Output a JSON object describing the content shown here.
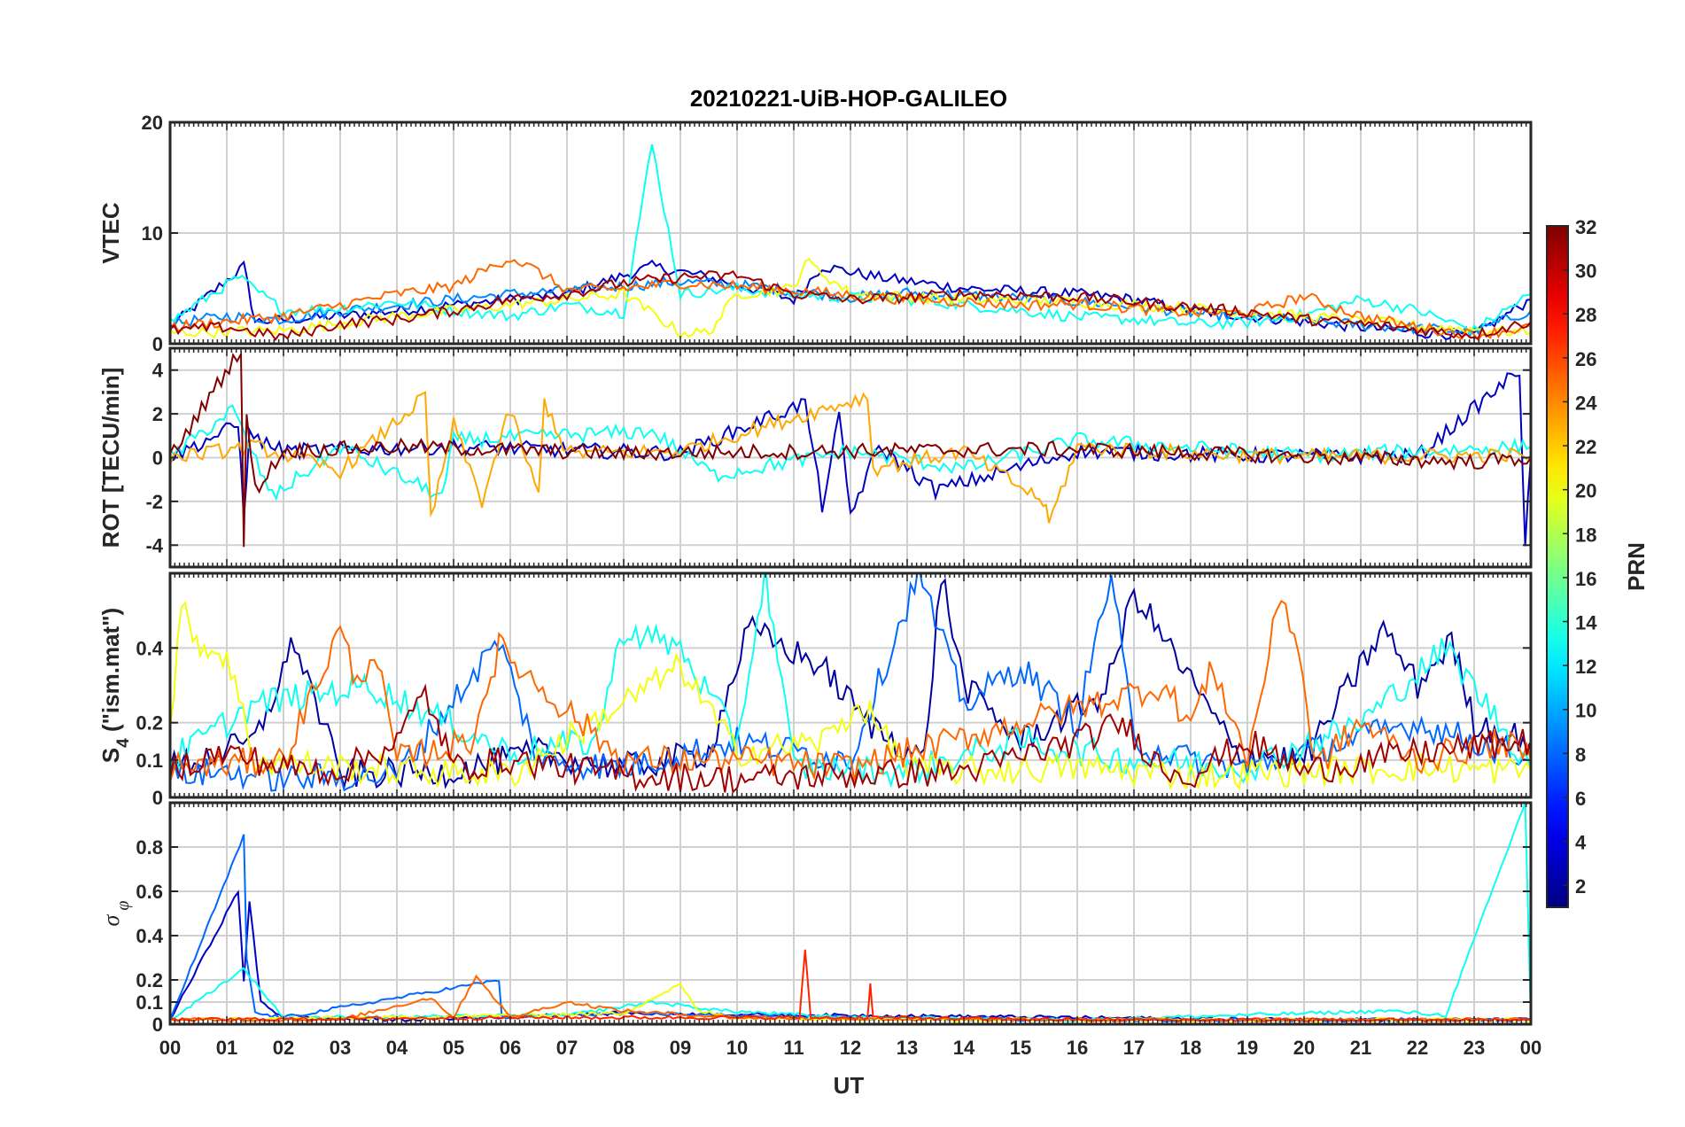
{
  "chart_data": {
    "title": "20210221-UiB-HOP-GALILEO",
    "type": "line",
    "xlabel": "UT",
    "xlim": [
      0,
      24
    ],
    "xticks": [
      "00",
      "01",
      "02",
      "03",
      "04",
      "05",
      "06",
      "07",
      "08",
      "09",
      "10",
      "11",
      "12",
      "13",
      "14",
      "15",
      "16",
      "17",
      "18",
      "19",
      "20",
      "21",
      "22",
      "23",
      "00"
    ],
    "colorbar": {
      "label": "PRN",
      "range": [
        1,
        32
      ],
      "ticks": [
        2,
        4,
        6,
        8,
        10,
        12,
        14,
        16,
        18,
        20,
        22,
        24,
        26,
        28,
        30,
        32
      ],
      "colormap": "jet"
    },
    "panels": [
      {
        "ylabel": "VTEC",
        "ylim": [
          0,
          20
        ],
        "yticks": [
          0,
          10,
          20
        ],
        "series": [
          {
            "prn": 3,
            "x": [
              0,
              1.3,
              1.5,
              3,
              5,
              7,
              8.5,
              9.5,
              11,
              11.5,
              12.5,
              14,
              16,
              17,
              18,
              19,
              20,
              21,
              22,
              23,
              24
            ],
            "y": [
              1.5,
              7,
              2,
              2.5,
              3.5,
              4.5,
              7,
              6,
              4,
              7,
              6,
              5,
              4.5,
              4,
              3,
              2.5,
              2,
              1.5,
              1,
              0.8,
              4
            ]
          },
          {
            "prn": 9,
            "x": [
              0,
              1,
              2,
              3,
              4,
              5,
              6,
              7,
              8,
              9,
              10,
              11,
              12,
              13,
              14,
              15,
              16,
              17,
              18,
              19,
              20,
              21,
              22,
              23,
              24
            ],
            "y": [
              1.8,
              2.5,
              2.2,
              3,
              3.5,
              4,
              4.5,
              4.8,
              5.2,
              5.6,
              5.3,
              4.8,
              4.2,
              4.6,
              4.4,
              4.1,
              3.8,
              3.4,
              2.8,
              2.4,
              2.1,
              1.7,
              1.4,
              1.1,
              3
            ]
          },
          {
            "prn": 13,
            "x": [
              0,
              1.2,
              2,
              3,
              4,
              5,
              6,
              7,
              8,
              8.5,
              9,
              10,
              11,
              12,
              13,
              14,
              15,
              16,
              17,
              18,
              19,
              20,
              21,
              22,
              23,
              24
            ],
            "y": [
              2,
              6,
              3,
              3.2,
              3.8,
              3,
              2.5,
              3.5,
              2.8,
              18,
              4.5,
              5,
              4.4,
              4.2,
              4.0,
              3.5,
              3.0,
              2.4,
              2.2,
              1.8,
              1.9,
              2.6,
              4,
              3.0,
              1.2,
              4.5
            ]
          },
          {
            "prn": 20,
            "x": [
              0,
              2,
              4,
              6,
              8,
              9,
              9.5,
              10,
              11,
              11.2,
              12,
              14,
              16,
              18,
              20,
              22,
              24
            ],
            "y": [
              1,
              1.2,
              2.5,
              3.5,
              4.5,
              1,
              1,
              4.5,
              5,
              7.5,
              4.5,
              4,
              3.8,
              3.2,
              2.5,
              1.6,
              1
            ]
          },
          {
            "prn": 25,
            "x": [
              0,
              1,
              2,
              3,
              4,
              5,
              6,
              6.5,
              7,
              8,
              9,
              10,
              11,
              12,
              13,
              14,
              15,
              16,
              17,
              18,
              19,
              20,
              21,
              22,
              23,
              24
            ],
            "y": [
              1.5,
              2,
              2.5,
              3.5,
              4.5,
              5.2,
              7.8,
              6.5,
              4.8,
              5,
              5.5,
              5.2,
              4.8,
              4.4,
              4.0,
              3.8,
              3.5,
              3.6,
              3.2,
              2.8,
              2.8,
              4.3,
              2.5,
              1.5,
              0.8,
              1.5
            ]
          },
          {
            "prn": 31,
            "x": [
              0,
              1,
              2,
              3,
              4,
              5,
              6,
              7,
              8,
              9,
              10,
              11,
              12,
              13,
              14,
              15,
              16,
              17,
              18,
              19,
              20,
              21,
              22,
              23,
              24
            ],
            "y": [
              1.2,
              1.5,
              0.6,
              1.8,
              2.2,
              3,
              4,
              4.5,
              5.5,
              6,
              6.2,
              4.5,
              4,
              4.2,
              4.5,
              4.4,
              4.2,
              3.8,
              3.3,
              2.9,
              2.2,
              1.8,
              1.3,
              0.8,
              2
            ]
          }
        ]
      },
      {
        "ylabel": "ROT [TECU/min]",
        "ylim": [
          -5,
          5
        ],
        "yticks": [
          -4,
          -2,
          0,
          2,
          4
        ],
        "series": [
          {
            "prn": 3,
            "x": [
              0,
              1.2,
              1.3,
              1.4,
              2,
              5,
              9,
              11.2,
              11.5,
              11.8,
              12.0,
              12.5,
              13.5,
              16,
              19,
              22,
              23.8,
              23.9,
              24
            ],
            "y": [
              0,
              1.5,
              -2.5,
              1,
              0.3,
              0.5,
              0.2,
              2.5,
              -2.2,
              1.8,
              -2.6,
              0.5,
              -1.5,
              0.3,
              0.1,
              0.05,
              4,
              -4,
              0
            ]
          },
          {
            "prn": 13,
            "x": [
              0,
              1.1,
              1.8,
              3,
              4.8,
              5,
              8.5,
              9.6,
              12,
              14,
              16,
              20,
              24
            ],
            "y": [
              0,
              2.2,
              -1.8,
              0.5,
              -1.8,
              0.8,
              1.2,
              -0.8,
              0.3,
              -0.5,
              0.8,
              0.1,
              0.5
            ]
          },
          {
            "prn": 23,
            "x": [
              0,
              1.5,
              3,
              4.5,
              4.6,
              5,
              5.5,
              6,
              6.5,
              6.6,
              7,
              9,
              12.3,
              12.4,
              14,
              15.4,
              15.5,
              16,
              18,
              20,
              24
            ],
            "y": [
              0,
              0.5,
              -0.6,
              2.8,
              -2.8,
              1.5,
              -2,
              2.2,
              -1.8,
              2.6,
              0.2,
              0.3,
              2.8,
              -0.5,
              0.3,
              -2,
              -3,
              0.5,
              0.2,
              0.05,
              0.1
            ]
          },
          {
            "prn": 32,
            "x": [
              0,
              1.25,
              1.3,
              1.35,
              1.5,
              2,
              4,
              8,
              12,
              16,
              20,
              23,
              24
            ],
            "y": [
              0,
              5,
              -4,
              2,
              -1.5,
              0.3,
              0.5,
              0.2,
              0.3,
              0.4,
              0.05,
              -0.2,
              0
            ]
          }
        ]
      },
      {
        "ylabel": "S4 (\"ism.mat\")",
        "ylim": [
          0,
          0.6
        ],
        "yticks": [
          0,
          0.1,
          0.2,
          0.4
        ],
        "series": [
          {
            "prn": 2,
            "x": [
              0,
              1.5,
              2.2,
              3,
              5,
              6.5,
              8,
              9.5,
              10.2,
              11.5,
              12.3,
              13.3,
              13.6,
              14,
              15,
              16.5,
              17,
              18.8,
              20,
              21.4,
              22,
              22.6,
              23,
              24
            ],
            "y": [
              0.08,
              0.15,
              0.42,
              0.06,
              0.07,
              0.12,
              0.08,
              0.12,
              0.45,
              0.35,
              0.2,
              0.1,
              0.6,
              0.3,
              0.15,
              0.28,
              0.55,
              0.12,
              0.1,
              0.45,
              0.3,
              0.42,
              0.2,
              0.15
            ]
          },
          {
            "prn": 8,
            "x": [
              0,
              1,
              2,
              4,
              5.2,
              5.8,
              6.5,
              8,
              10,
              12,
              13.2,
              14,
              15,
              16,
              16.6,
              17,
              18,
              19,
              20,
              22,
              24
            ],
            "y": [
              0.06,
              0.07,
              0.05,
              0.06,
              0.3,
              0.42,
              0.1,
              0.08,
              0.15,
              0.1,
              0.6,
              0.25,
              0.35,
              0.2,
              0.6,
              0.15,
              0.1,
              0.08,
              0.12,
              0.2,
              0.1
            ]
          },
          {
            "prn": 13,
            "x": [
              0,
              1.5,
              3.5,
              6,
              7.5,
              8,
              9,
              10,
              10.5,
              11,
              13,
              15,
              17,
              19,
              21,
              22.5,
              24
            ],
            "y": [
              0.1,
              0.25,
              0.3,
              0.12,
              0.15,
              0.45,
              0.4,
              0.15,
              0.6,
              0.08,
              0.07,
              0.15,
              0.1,
              0.08,
              0.2,
              0.4,
              0.08
            ]
          },
          {
            "prn": 20,
            "x": [
              0,
              0.2,
              0.6,
              1,
              1.5,
              3,
              6,
              9,
              10,
              11.5,
              12.2,
              13,
              14,
              16,
              18,
              20,
              22,
              24
            ],
            "y": [
              0.2,
              0.5,
              0.4,
              0.38,
              0.1,
              0.08,
              0.06,
              0.35,
              0.12,
              0.15,
              0.25,
              0.08,
              0.07,
              0.08,
              0.06,
              0.07,
              0.08,
              0.07
            ]
          },
          {
            "prn": 25,
            "x": [
              0,
              2,
              3,
              3.3,
              3.6,
              4,
              5.3,
              5.8,
              6.5,
              8,
              10,
              12,
              17.5,
              18,
              18.4,
              19,
              19.6,
              19.9,
              20.2,
              21,
              22,
              23.5,
              24
            ],
            "y": [
              0.08,
              0.1,
              0.45,
              0.3,
              0.4,
              0.1,
              0.15,
              0.4,
              0.3,
              0.1,
              0.1,
              0.08,
              0.3,
              0.2,
              0.35,
              0.1,
              0.55,
              0.4,
              0.08,
              0.2,
              0.1,
              0.15,
              0.1
            ]
          },
          {
            "prn": 31,
            "x": [
              0,
              1,
              2,
              3,
              4,
              4.5,
              5,
              6,
              8,
              10,
              12,
              14,
              16,
              16.8,
              17.5,
              18,
              19,
              20,
              22,
              24
            ],
            "y": [
              0.08,
              0.12,
              0.08,
              0.07,
              0.15,
              0.28,
              0.08,
              0.1,
              0.06,
              0.05,
              0.06,
              0.07,
              0.15,
              0.2,
              0.08,
              0.06,
              0.15,
              0.07,
              0.12,
              0.15
            ]
          }
        ]
      },
      {
        "ylabel": "σ φ",
        "ylim": [
          0,
          1
        ],
        "yticks": [
          0,
          0.1,
          0.2,
          0.4,
          0.6,
          0.8
        ],
        "series": [
          {
            "prn": 3,
            "x": [
              0,
              1.2,
              1.3,
              1.4,
              1.6,
              2,
              4,
              8,
              11.5,
              12,
              16,
              20,
              24
            ],
            "y": [
              0.02,
              0.6,
              0.2,
              0.55,
              0.1,
              0.03,
              0.02,
              0.05,
              0.04,
              0.04,
              0.03,
              0.02,
              0.02
            ]
          },
          {
            "prn": 8,
            "x": [
              0,
              1.3,
              1.35,
              1.5,
              2,
              5.8,
              5.85,
              8,
              12,
              16,
              24
            ],
            "y": [
              0.02,
              0.85,
              0.3,
              0.05,
              0.03,
              0.2,
              0.03,
              0.05,
              0.03,
              0.02,
              0.02
            ]
          },
          {
            "prn": 13,
            "x": [
              0,
              1.3,
              2,
              7,
              8.5,
              9.8,
              12,
              16,
              21.5,
              22.5,
              23.9,
              24
            ],
            "y": [
              0.02,
              0.25,
              0.03,
              0.04,
              0.1,
              0.06,
              0.03,
              0.02,
              0.06,
              0.04,
              1.0,
              0.02
            ]
          },
          {
            "prn": 20,
            "x": [
              0,
              4,
              8,
              9,
              9.3,
              10,
              14,
              18,
              24
            ],
            "y": [
              0.02,
              0.03,
              0.05,
              0.18,
              0.06,
              0.03,
              0.02,
              0.02,
              0.02
            ]
          },
          {
            "prn": 25,
            "x": [
              0,
              3,
              4.6,
              5,
              5.4,
              6,
              7,
              8,
              10,
              14,
              18,
              24
            ],
            "y": [
              0.02,
              0.02,
              0.12,
              0.03,
              0.22,
              0.03,
              0.1,
              0.06,
              0.03,
              0.02,
              0.02,
              0.02
            ]
          },
          {
            "prn": 27,
            "x": [
              0,
              6,
              11.1,
              11.2,
              11.3,
              12.3,
              12.35,
              12.4,
              16,
              24
            ],
            "y": [
              0.02,
              0.03,
              0.03,
              0.33,
              0.03,
              0.03,
              0.18,
              0.03,
              0.02,
              0.02
            ]
          }
        ]
      }
    ]
  }
}
